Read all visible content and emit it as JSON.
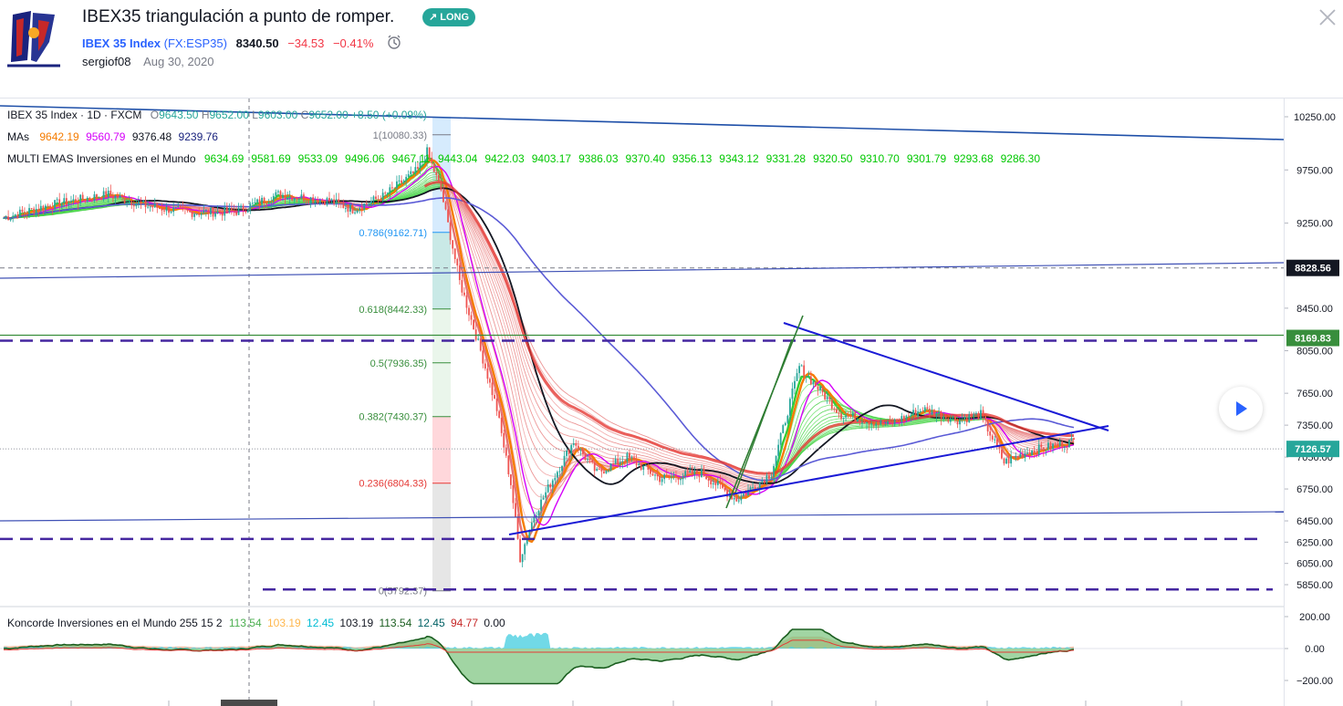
{
  "header": {
    "title": "IBEX35 triangulación a punto de romper.",
    "badge": "LONG",
    "symbol_name": "IBEX 35 Index",
    "symbol_code": "(FX:ESP35)",
    "price": "8340.50",
    "change": "−34.53",
    "change_pct": "−0.41%",
    "author": "sergiof08",
    "date": "Aug 30, 2020",
    "icons": [
      "logo",
      "alarm-clock-icon",
      "close-icon",
      "play-icon"
    ]
  },
  "legend": {
    "main_prefix": "IBEX 35 Index · 1D · FXCM",
    "o_label": "O",
    "o": "9643.50",
    "h_label": "H",
    "h": "9652.00",
    "l_label": "L",
    "l": "9603.00",
    "c_label": "C",
    "c": "9652.00",
    "change": "+8.50 (+0.09%)",
    "mas_label": "MAs",
    "mas": [
      "9642.19",
      "9560.79",
      "9376.48",
      "9239.76"
    ],
    "multi_label": "MULTI EMAS Inversiones en el Mundo",
    "multi": [
      "9634.69",
      "9581.69",
      "9533.09",
      "9496.06",
      "9467.11",
      "9443.04",
      "9422.03",
      "9403.17",
      "9386.03",
      "9370.40",
      "9356.13",
      "9343.12",
      "9331.28",
      "9320.50",
      "9310.70",
      "9301.79",
      "9293.68",
      "9286.30"
    ],
    "koncorde_label": "Koncorde Inversiones en el Mundo 255 15 2",
    "koncorde": [
      "113.54",
      "103.19",
      "12.45",
      "103.19",
      "113.54",
      "12.45",
      "94.77",
      "0.00"
    ]
  },
  "colors": {
    "up": "#26a69a",
    "down": "#ef5350",
    "ema_green": "#00e600",
    "ema_red": "#e53935",
    "ma_orange": "#f57c00",
    "ma_magenta": "#d500f9",
    "ma_black": "#131722",
    "ma_blue": "#5b5bd6",
    "trend_blue": "#1a1ad6",
    "dash_purple": "#5e35b1",
    "fib_green": "#388e3c",
    "fib_red": "#e53935",
    "fib_blue": "#2196f3",
    "badge": "#26a69a",
    "change_red": "#f23645"
  },
  "chart_data": {
    "type": "line",
    "title": "IBEX 35 Index · 1D · FXCM",
    "ylim": [
      5700,
      10350
    ],
    "y_ticks": [
      10250,
      9750,
      9250,
      8450,
      8050,
      7650,
      7350,
      7050,
      6750,
      6450,
      6250,
      6050,
      5850
    ],
    "price_labels": [
      {
        "value": 8828.56,
        "text": "8828.56"
      },
      {
        "value": 8169.83,
        "text": "8169.83"
      },
      {
        "value": 7126.57,
        "text": "7126.57"
      }
    ],
    "fibonacci": [
      {
        "ratio": "1",
        "value": 10080.33,
        "text": "1(10080.33)"
      },
      {
        "ratio": "0.786",
        "value": 9162.71,
        "text": "0.786(9162.71)"
      },
      {
        "ratio": "0.618",
        "value": 8442.33,
        "text": "0.618(8442.33)"
      },
      {
        "ratio": "0.5",
        "value": 7936.35,
        "text": "0.5(7936.35)"
      },
      {
        "ratio": "0.382",
        "value": 7430.37,
        "text": "0.382(7430.37)"
      },
      {
        "ratio": "0.236",
        "value": 6804.33,
        "text": "0.236(6804.33)"
      },
      {
        "ratio": "0",
        "value": 5792.37,
        "text": "0(5792.37)"
      }
    ],
    "horizontal_levels": [
      8828.56,
      8169.83,
      6250,
      5800
    ],
    "price_path": [
      {
        "t": 0,
        "v": 9300
      },
      {
        "t": 20,
        "v": 9420
      },
      {
        "t": 45,
        "v": 9520
      },
      {
        "t": 62,
        "v": 9410
      },
      {
        "t": 80,
        "v": 9350
      },
      {
        "t": 100,
        "v": 9360
      },
      {
        "t": 118,
        "v": 9520
      },
      {
        "t": 140,
        "v": 9460
      },
      {
        "t": 150,
        "v": 9380
      },
      {
        "t": 163,
        "v": 9500
      },
      {
        "t": 178,
        "v": 9750
      },
      {
        "t": 182,
        "v": 9920
      },
      {
        "t": 188,
        "v": 9560
      },
      {
        "t": 196,
        "v": 8700
      },
      {
        "t": 205,
        "v": 8050
      },
      {
        "t": 212,
        "v": 7500
      },
      {
        "t": 218,
        "v": 6800
      },
      {
        "t": 222,
        "v": 6100
      },
      {
        "t": 228,
        "v": 6500
      },
      {
        "t": 235,
        "v": 6800
      },
      {
        "t": 245,
        "v": 7200
      },
      {
        "t": 255,
        "v": 6900
      },
      {
        "t": 268,
        "v": 7050
      },
      {
        "t": 282,
        "v": 6850
      },
      {
        "t": 300,
        "v": 6900
      },
      {
        "t": 315,
        "v": 6650
      },
      {
        "t": 330,
        "v": 6900
      },
      {
        "t": 342,
        "v": 7900
      },
      {
        "t": 348,
        "v": 7750
      },
      {
        "t": 360,
        "v": 7450
      },
      {
        "t": 380,
        "v": 7350
      },
      {
        "t": 395,
        "v": 7500
      },
      {
        "t": 410,
        "v": 7400
      },
      {
        "t": 420,
        "v": 7450
      },
      {
        "t": 430,
        "v": 7000
      },
      {
        "t": 440,
        "v": 7100
      },
      {
        "t": 450,
        "v": 7150
      },
      {
        "t": 460,
        "v": 7200
      }
    ],
    "koncorde": {
      "ylim": [
        -250,
        250
      ],
      "ticks": [
        200,
        0,
        -200
      ]
    }
  }
}
